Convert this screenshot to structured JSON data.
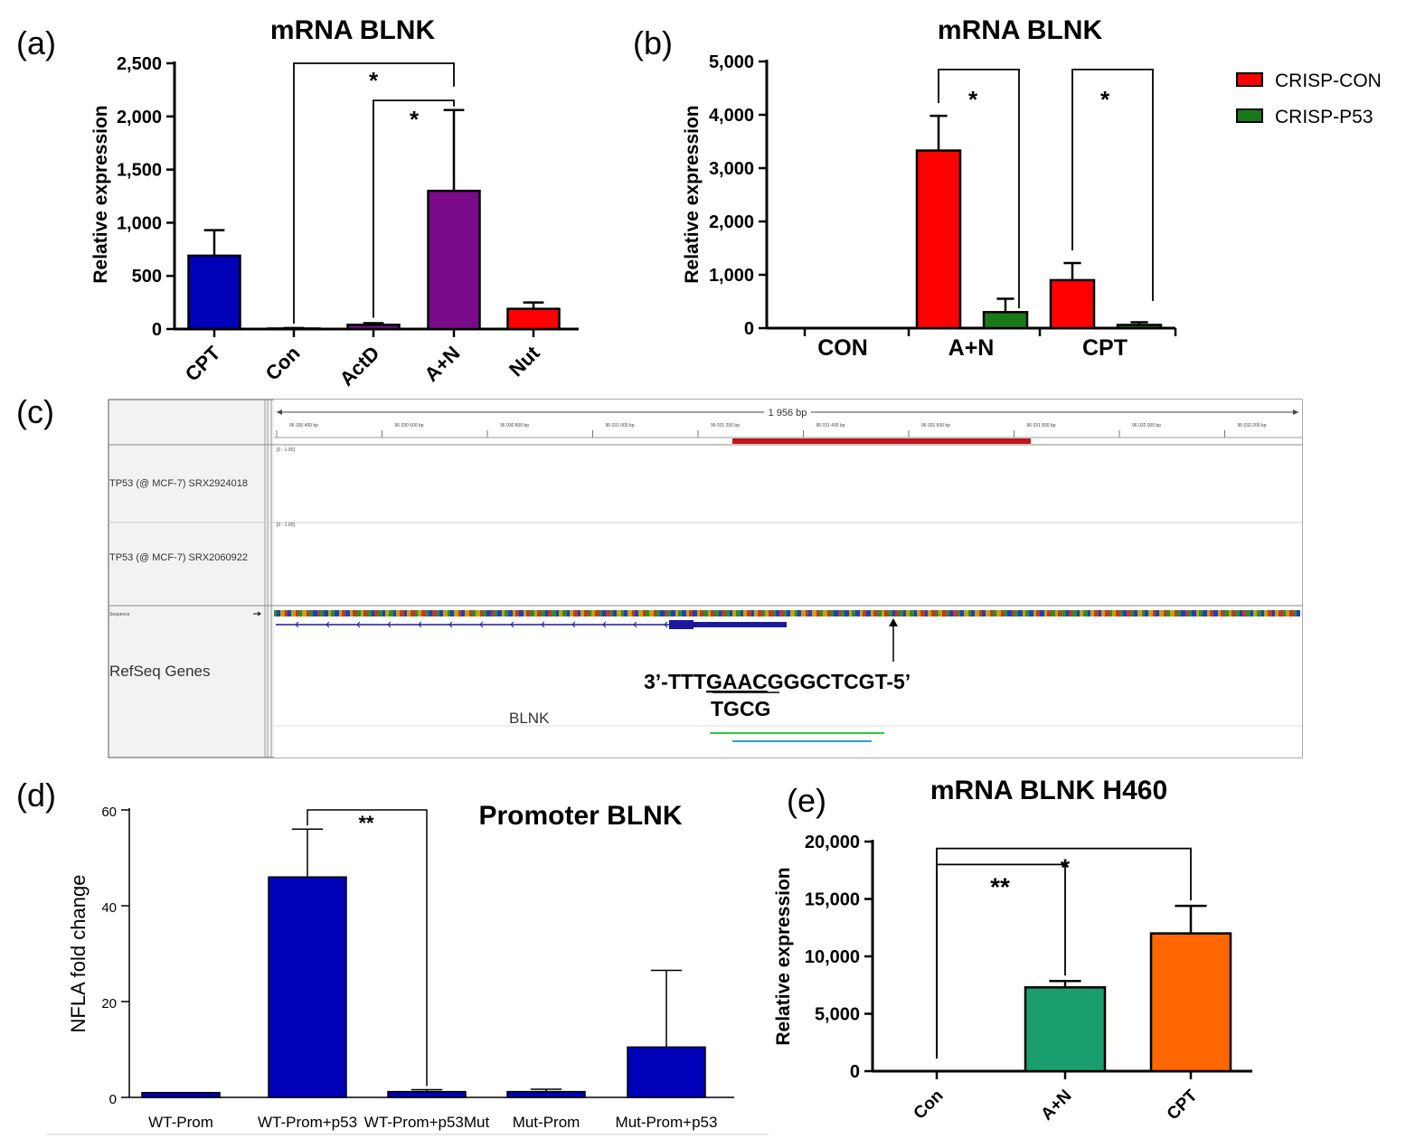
{
  "colors": {
    "blue": "#0000b8",
    "purple": "#7a0a8a",
    "red": "#ff0000",
    "green": "#1a7a1a",
    "teal": "#1a9e6e",
    "orange": "#ff6600",
    "track_blue": "#1a1a9a",
    "region_red": "#c0161b"
  },
  "chart_data": [
    {
      "panel": "(a)",
      "type": "bar",
      "title": "mRNA BLNK",
      "ylabel": "Relative expression",
      "ylim": [
        0,
        2500
      ],
      "yticks": [
        0,
        500,
        1000,
        1500,
        2000,
        2500
      ],
      "ytick_labels": [
        "0",
        "500",
        "1,000",
        "1,500",
        "2,000",
        "2,500"
      ],
      "categories": [
        "CPT",
        "Con",
        "ActD",
        "A+N",
        "Nut"
      ],
      "values": [
        690,
        5,
        40,
        1300,
        190
      ],
      "errors": [
        240,
        5,
        15,
        760,
        60
      ],
      "bar_colors": [
        "blue",
        "blue",
        "purple",
        "purple",
        "red"
      ],
      "significance": [
        {
          "from": "Con",
          "to": "A+N",
          "label": "*"
        },
        {
          "from": "ActD",
          "to": "A+N",
          "label": "*"
        }
      ]
    },
    {
      "panel": "(b)",
      "type": "bar",
      "title": "mRNA BLNK",
      "ylabel": "Relative expression",
      "ylim": [
        0,
        5000
      ],
      "yticks": [
        0,
        1000,
        2000,
        3000,
        4000,
        5000
      ],
      "ytick_labels": [
        "0",
        "1,000",
        "2,000",
        "3,000",
        "4,000",
        "5,000"
      ],
      "categories": [
        "CON",
        "A+N",
        "CPT"
      ],
      "series": [
        {
          "name": "CRISP-CON",
          "values": [
            0,
            3330,
            900
          ],
          "errors": [
            0,
            650,
            320
          ]
        },
        {
          "name": "CRISP-P53",
          "values": [
            0,
            300,
            60
          ],
          "errors": [
            0,
            250,
            50
          ]
        }
      ],
      "legend": "top-right",
      "significance": [
        {
          "category": "A+N",
          "label": "*"
        },
        {
          "category": "CPT",
          "label": "*"
        }
      ]
    },
    {
      "panel": "(d)",
      "type": "bar",
      "title": "Promoter BLNK",
      "ylabel": "NFLA fold change",
      "ylim": [
        0,
        60
      ],
      "yticks": [
        0,
        20,
        40,
        60
      ],
      "ytick_labels": [
        "0",
        "20",
        "40",
        "60"
      ],
      "categories": [
        "WT-Prom",
        "WT-Prom+p53",
        "WT-Prom+p53Mut",
        "Mut-Prom",
        "Mut-Prom+p53"
      ],
      "values": [
        1,
        46,
        1.2,
        1.2,
        10.5
      ],
      "errors": [
        0,
        10,
        0.4,
        0.5,
        16
      ],
      "significance": [
        {
          "from": "WT-Prom+p53",
          "to": "WT-Prom+p53Mut",
          "label": "**"
        }
      ]
    },
    {
      "panel": "(e)",
      "type": "bar",
      "title": "mRNA BLNK H460",
      "ylabel": "Relative expression",
      "ylim": [
        0,
        20000
      ],
      "yticks": [
        0,
        5000,
        10000,
        15000,
        20000
      ],
      "ytick_labels": [
        "0",
        "5,000",
        "10,000",
        "15,000",
        "20,000"
      ],
      "categories": [
        "Con",
        "A+N",
        "CPT"
      ],
      "values": [
        0,
        7300,
        12000
      ],
      "errors": [
        0,
        550,
        2400
      ],
      "bar_colors": [
        "blue",
        "teal",
        "orange"
      ],
      "significance": [
        {
          "from": "Con",
          "to": "CPT",
          "label": "*"
        },
        {
          "from": "Con",
          "to": "A+N",
          "label": "**"
        }
      ]
    }
  ],
  "panel_c": {
    "label": "(c)",
    "span": "1 956 bp",
    "ruler_ticks": [
      "96 030 400 bp",
      "96 030 600 bp",
      "96 030 800 bp",
      "96 031 000 bp",
      "96 031 200 bp",
      "96 031 400 bp",
      "96 031 600 bp",
      "96 031 800 bp",
      "96 032 000 bp",
      "96 032 200 bp"
    ],
    "tracks": [
      {
        "name": "TP53 (@ MCF-7) SRX2924018",
        "range": "[0 - 1.00]"
      },
      {
        "name": "TP53 (@ MCF-7) SRX2060922",
        "range": "[0 - 1.00]"
      }
    ],
    "sequence_label": "Sequence",
    "refseq_label": "RefSeq Genes",
    "gene_label": "BLNK",
    "motif_prefix": "3’-TTT",
    "motif_underlined": "GAAC",
    "motif_suffix": "GGGCTCGT-5’",
    "motif_sub": "TGCG"
  }
}
